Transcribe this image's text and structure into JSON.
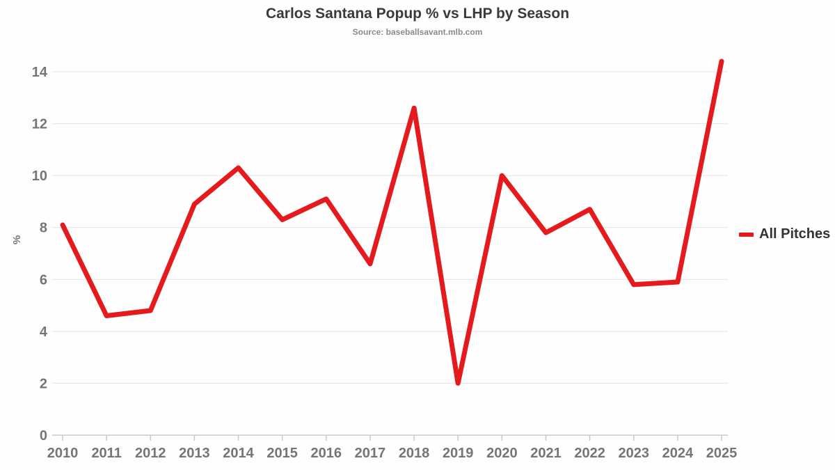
{
  "title": "Carlos Santana Popup % vs LHP by Season",
  "subtitle": "Source: baseballsavant.mlb.com",
  "legend": {
    "label": "All Pitches"
  },
  "colors": {
    "line": "#e41a1c",
    "grid": "#e4e4e4",
    "axis": "#c8c8c8",
    "tick_label": "#757575",
    "title": "#3a3a3a",
    "subtitle": "#8a8a8a",
    "legend_text": "#333333"
  },
  "chart_data": {
    "type": "line",
    "title": "Carlos Santana Popup % vs LHP by Season",
    "subtitle": "Source: baseballsavant.mlb.com",
    "xlabel": "",
    "ylabel": "%",
    "x": [
      2010,
      2011,
      2012,
      2013,
      2014,
      2015,
      2016,
      2017,
      2018,
      2019,
      2020,
      2021,
      2022,
      2023,
      2024,
      2025
    ],
    "series": [
      {
        "name": "All Pitches",
        "color": "#e41a1c",
        "values": [
          8.1,
          4.6,
          4.8,
          8.9,
          10.3,
          8.3,
          9.1,
          6.6,
          12.6,
          2.0,
          10.0,
          7.8,
          8.7,
          5.8,
          5.9,
          14.4
        ]
      }
    ],
    "ylim": [
      0,
      14
    ],
    "yticks": [
      0,
      2,
      4,
      6,
      8,
      10,
      12,
      14
    ],
    "grid": true,
    "legend_position": "right"
  }
}
